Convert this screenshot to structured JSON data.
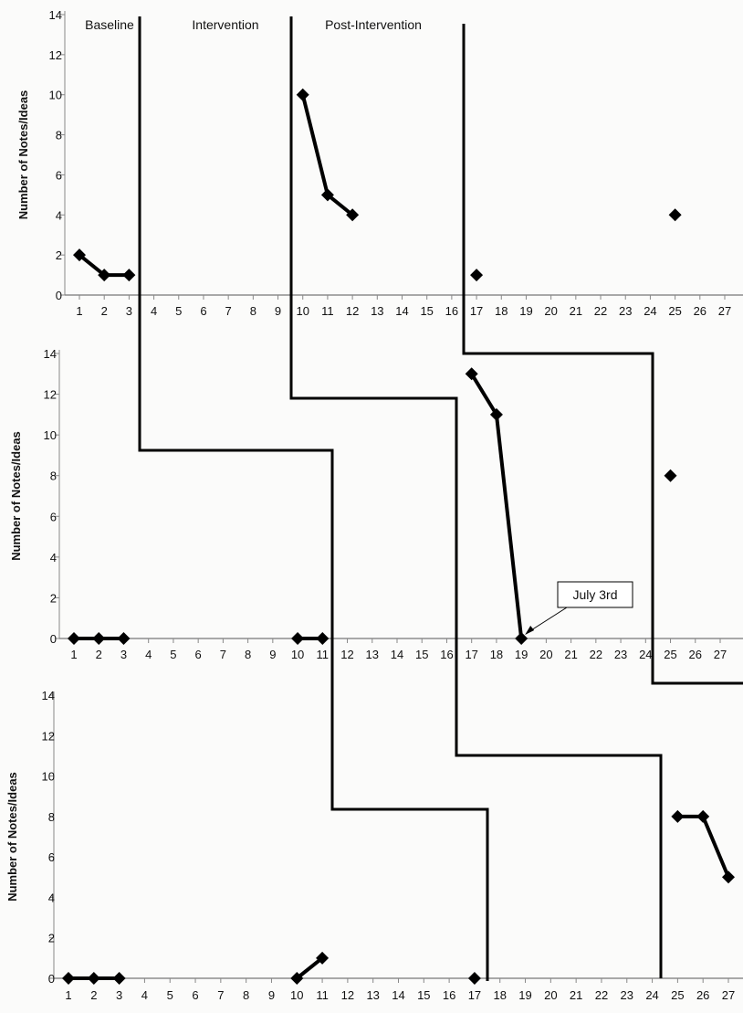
{
  "chart_data": [
    {
      "type": "line",
      "title": "",
      "xlabel": "",
      "ylabel": "Number of Notes/Ideas",
      "ylim": [
        0,
        14
      ],
      "yticks": [
        0,
        2,
        4,
        6,
        8,
        10,
        12,
        14
      ],
      "xticks": [
        1,
        2,
        3,
        4,
        5,
        6,
        7,
        8,
        9,
        10,
        11,
        12,
        13,
        14,
        15,
        16,
        17,
        18,
        19,
        20,
        21,
        22,
        23,
        24,
        25,
        26,
        27
      ],
      "phase_labels": [
        "Baseline",
        "Intervention",
        "Post-Intervention"
      ],
      "segments": [
        [
          [
            1,
            2
          ],
          [
            2,
            1
          ],
          [
            3,
            1
          ]
        ],
        [
          [
            10,
            10
          ],
          [
            11,
            5
          ],
          [
            12,
            4
          ]
        ],
        [
          [
            17,
            1
          ]
        ],
        [
          [
            25,
            4
          ]
        ]
      ],
      "annotations": []
    },
    {
      "type": "line",
      "title": "",
      "xlabel": "",
      "ylabel": "Number of Notes/Ideas",
      "ylim": [
        0,
        14
      ],
      "yticks": [
        0,
        2,
        4,
        6,
        8,
        10,
        12,
        14
      ],
      "xticks": [
        1,
        2,
        3,
        4,
        5,
        6,
        7,
        8,
        9,
        10,
        11,
        12,
        13,
        14,
        15,
        16,
        17,
        18,
        19,
        20,
        21,
        22,
        23,
        24,
        25,
        26,
        27
      ],
      "phase_labels": [],
      "segments": [
        [
          [
            1,
            0
          ],
          [
            2,
            0
          ],
          [
            3,
            0
          ]
        ],
        [
          [
            10,
            0
          ],
          [
            11,
            0
          ]
        ],
        [
          [
            17,
            13
          ],
          [
            18,
            11
          ],
          [
            19,
            0
          ]
        ],
        [
          [
            25,
            8
          ]
        ]
      ],
      "annotations": [
        {
          "text": "July 3rd",
          "x": 19,
          "y": 0
        }
      ]
    },
    {
      "type": "line",
      "title": "",
      "xlabel": "",
      "ylabel": "Number of Notes/Ideas",
      "ylim": [
        0,
        14
      ],
      "yticks": [
        0,
        2,
        4,
        6,
        8,
        10,
        12,
        14
      ],
      "xticks": [
        1,
        2,
        3,
        4,
        5,
        6,
        7,
        8,
        9,
        10,
        11,
        12,
        13,
        14,
        15,
        16,
        17,
        18,
        19,
        20,
        21,
        22,
        23,
        24,
        25,
        26,
        27
      ],
      "phase_labels": [],
      "segments": [
        [
          [
            1,
            0
          ],
          [
            2,
            0
          ],
          [
            3,
            0
          ]
        ],
        [
          [
            10,
            0
          ],
          [
            11,
            1
          ]
        ],
        [
          [
            17,
            0
          ]
        ],
        [
          [
            25,
            8
          ],
          [
            26,
            8
          ],
          [
            27,
            5
          ]
        ]
      ],
      "annotations": []
    }
  ]
}
